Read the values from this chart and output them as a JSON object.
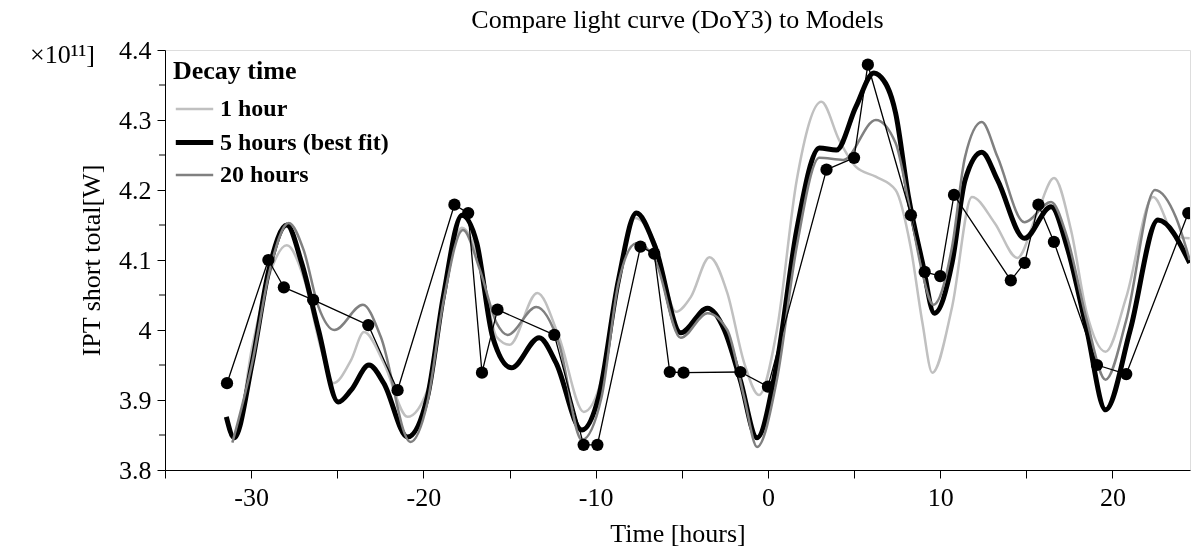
{
  "chart_data": {
    "type": "line",
    "title": "Compare light curve (DoY3) to Models",
    "xlabel": "Time [hours]",
    "ylabel": "IPT short total[W]",
    "annotations": [
      "×10¹¹]"
    ],
    "legend_title": "Decay time",
    "legend": "top left",
    "grid": false,
    "xlim": [
      -35,
      24.5
    ],
    "ylim": [
      3.8,
      4.4
    ],
    "xticks": [
      {
        "value": -35,
        "label": null
      },
      -30,
      {
        "value": -25,
        "label": null
      },
      -20,
      {
        "value": -15,
        "label": null
      },
      -10,
      {
        "value": -5,
        "label": null
      },
      0,
      {
        "value": 5,
        "label": null
      },
      10,
      {
        "value": 15,
        "label": null
      },
      20
    ],
    "yticks": [
      3.8,
      {
        "value": 3.85,
        "label": null
      },
      3.9,
      {
        "value": 3.95,
        "label": null
      },
      {
        "value": 4.0,
        "label": "4"
      },
      {
        "value": 4.05,
        "label": null
      },
      4.1,
      {
        "value": 4.15,
        "label": null
      },
      4.2,
      {
        "value": 4.25,
        "label": null
      },
      4.3,
      {
        "value": 4.35,
        "label": null
      },
      4.4
    ],
    "series": [
      {
        "name": "1 hour",
        "color": "#c0c0c0",
        "marker": "none",
        "line_style": "solid",
        "x": [
          -31.26,
          -30.92,
          -29.94,
          -28.91,
          -27.93,
          -26.9,
          -25.92,
          -25.23,
          -24.2,
          -23.45,
          -22.3,
          -20.92,
          -19.77,
          -18.85,
          -17.76,
          -16.72,
          -15.75,
          -15.0,
          -13.39,
          -12.13,
          -10.69,
          -9.66,
          -8.68,
          -7.7,
          -6.55,
          -5.34,
          -4.48,
          -3.39,
          -2.36,
          -1.38,
          -0.52,
          0.52,
          1.67,
          3.1,
          4.14,
          5.11,
          6.26,
          7.41,
          8.28,
          8.97,
          9.54,
          10.69,
          11.84,
          13.16,
          14.48,
          15.63,
          16.61,
          17.59,
          18.51,
          19.6,
          20.8,
          22.36,
          23.68,
          24.48
        ],
        "values": [
          3.85,
          3.847,
          3.976,
          4.081,
          4.121,
          4.071,
          3.971,
          3.924,
          3.957,
          3.997,
          3.953,
          3.876,
          3.914,
          4.047,
          4.146,
          4.096,
          3.99,
          3.979,
          4.053,
          3.99,
          3.883,
          3.929,
          4.071,
          4.16,
          4.124,
          4.026,
          4.047,
          4.104,
          4.053,
          3.953,
          3.907,
          4.0,
          4.214,
          4.326,
          4.271,
          4.233,
          4.219,
          4.2,
          4.119,
          4.01,
          3.939,
          4.033,
          4.19,
          4.153,
          4.103,
          4.167,
          4.217,
          4.143,
          4.024,
          3.969,
          4.047,
          4.19,
          4.133,
          4.131
        ]
      },
      {
        "name": "5 hours (best fit)",
        "color": "#000000",
        "marker": "none",
        "line_style": "solid",
        "x": [
          -31.44,
          -30.98,
          -29.94,
          -28.97,
          -27.93,
          -27.07,
          -26.09,
          -24.94,
          -24.2,
          -23.16,
          -22.3,
          -20.92,
          -19.77,
          -18.85,
          -17.76,
          -16.9,
          -15.98,
          -14.89,
          -13.28,
          -12.3,
          -10.8,
          -9.83,
          -8.68,
          -7.64,
          -6.55,
          -5.06,
          -3.51,
          -2.53,
          -1.61,
          -0.63,
          0.52,
          1.67,
          2.99,
          3.97,
          5.11,
          6.15,
          6.44,
          7.41,
          8.16,
          8.97,
          9.66,
          10.69,
          11.44,
          12.41,
          13.33,
          14.89,
          16.44,
          17.36,
          18.51,
          19.6,
          21.03,
          22.64,
          24.48
        ],
        "values": [
          3.876,
          3.846,
          3.953,
          4.086,
          4.15,
          4.096,
          4.0,
          3.897,
          3.914,
          3.95,
          3.924,
          3.847,
          3.904,
          4.047,
          4.164,
          4.124,
          3.99,
          3.946,
          3.989,
          3.953,
          3.857,
          3.904,
          4.071,
          4.167,
          4.119,
          3.996,
          4.031,
          4.0,
          3.929,
          3.846,
          3.953,
          4.143,
          4.26,
          4.257,
          4.319,
          4.367,
          4.364,
          4.31,
          4.19,
          4.096,
          4.024,
          4.096,
          4.214,
          4.254,
          4.214,
          4.131,
          4.176,
          4.119,
          4.0,
          3.886,
          4.0,
          4.157,
          4.096
        ]
      },
      {
        "name": "20 hours",
        "color": "#808080",
        "marker": "none",
        "line_style": "solid",
        "x": [
          -31.09,
          -29.94,
          -28.91,
          -27.82,
          -26.95,
          -26.09,
          -25.17,
          -23.51,
          -22.47,
          -20.75,
          -19.77,
          -18.85,
          -17.7,
          -16.72,
          -15.75,
          -15.11,
          -13.45,
          -12.13,
          -10.8,
          -9.66,
          -8.68,
          -7.64,
          -6.55,
          -5.06,
          -3.51,
          -2.36,
          -1.38,
          -0.63,
          0.52,
          1.67,
          2.99,
          4.37,
          6.26,
          7.41,
          8.28,
          8.97,
          9.6,
          10.69,
          11.44,
          12.41,
          13.33,
          14.89,
          16.44,
          17.36,
          18.51,
          19.6,
          20.8,
          22.47,
          23.68,
          24.48
        ],
        "values": [
          3.839,
          3.953,
          4.086,
          4.153,
          4.114,
          4.033,
          4.0,
          4.036,
          3.99,
          3.84,
          3.896,
          4.039,
          4.143,
          4.086,
          4.01,
          3.993,
          4.033,
          3.981,
          3.843,
          3.904,
          4.067,
          4.124,
          4.1,
          3.989,
          4.024,
          4.0,
          3.904,
          3.833,
          3.929,
          4.119,
          4.246,
          4.243,
          4.3,
          4.267,
          4.167,
          4.081,
          4.036,
          4.119,
          4.247,
          4.297,
          4.247,
          4.154,
          4.183,
          4.133,
          4.014,
          3.929,
          4.014,
          4.2,
          4.161,
          4.1
        ]
      },
      {
        "color": "#000000",
        "marker": "circle",
        "line_style": "solid",
        "x": [
          -31.4,
          -29.0,
          -28.1,
          -26.4,
          -23.2,
          -21.5,
          -18.2,
          -17.4,
          -16.6,
          -15.7,
          -12.4,
          -10.7,
          -9.9,
          -7.4,
          -6.6,
          -5.7,
          -4.9,
          -1.6,
          0.0,
          3.4,
          5.0,
          5.8,
          8.3,
          9.1,
          10.0,
          10.8,
          14.1,
          14.9,
          15.7,
          16.6,
          19.1,
          20.8,
          24.4
        ],
        "values": [
          3.924,
          4.1,
          4.061,
          4.043,
          4.007,
          3.914,
          4.179,
          4.167,
          3.939,
          4.029,
          3.993,
          3.836,
          3.836,
          4.119,
          4.109,
          3.94,
          3.939,
          3.94,
          3.919,
          4.229,
          4.246,
          4.379,
          4.164,
          4.083,
          4.077,
          4.193,
          4.071,
          4.096,
          4.179,
          4.126,
          3.95,
          3.937,
          4.167
        ]
      }
    ]
  }
}
